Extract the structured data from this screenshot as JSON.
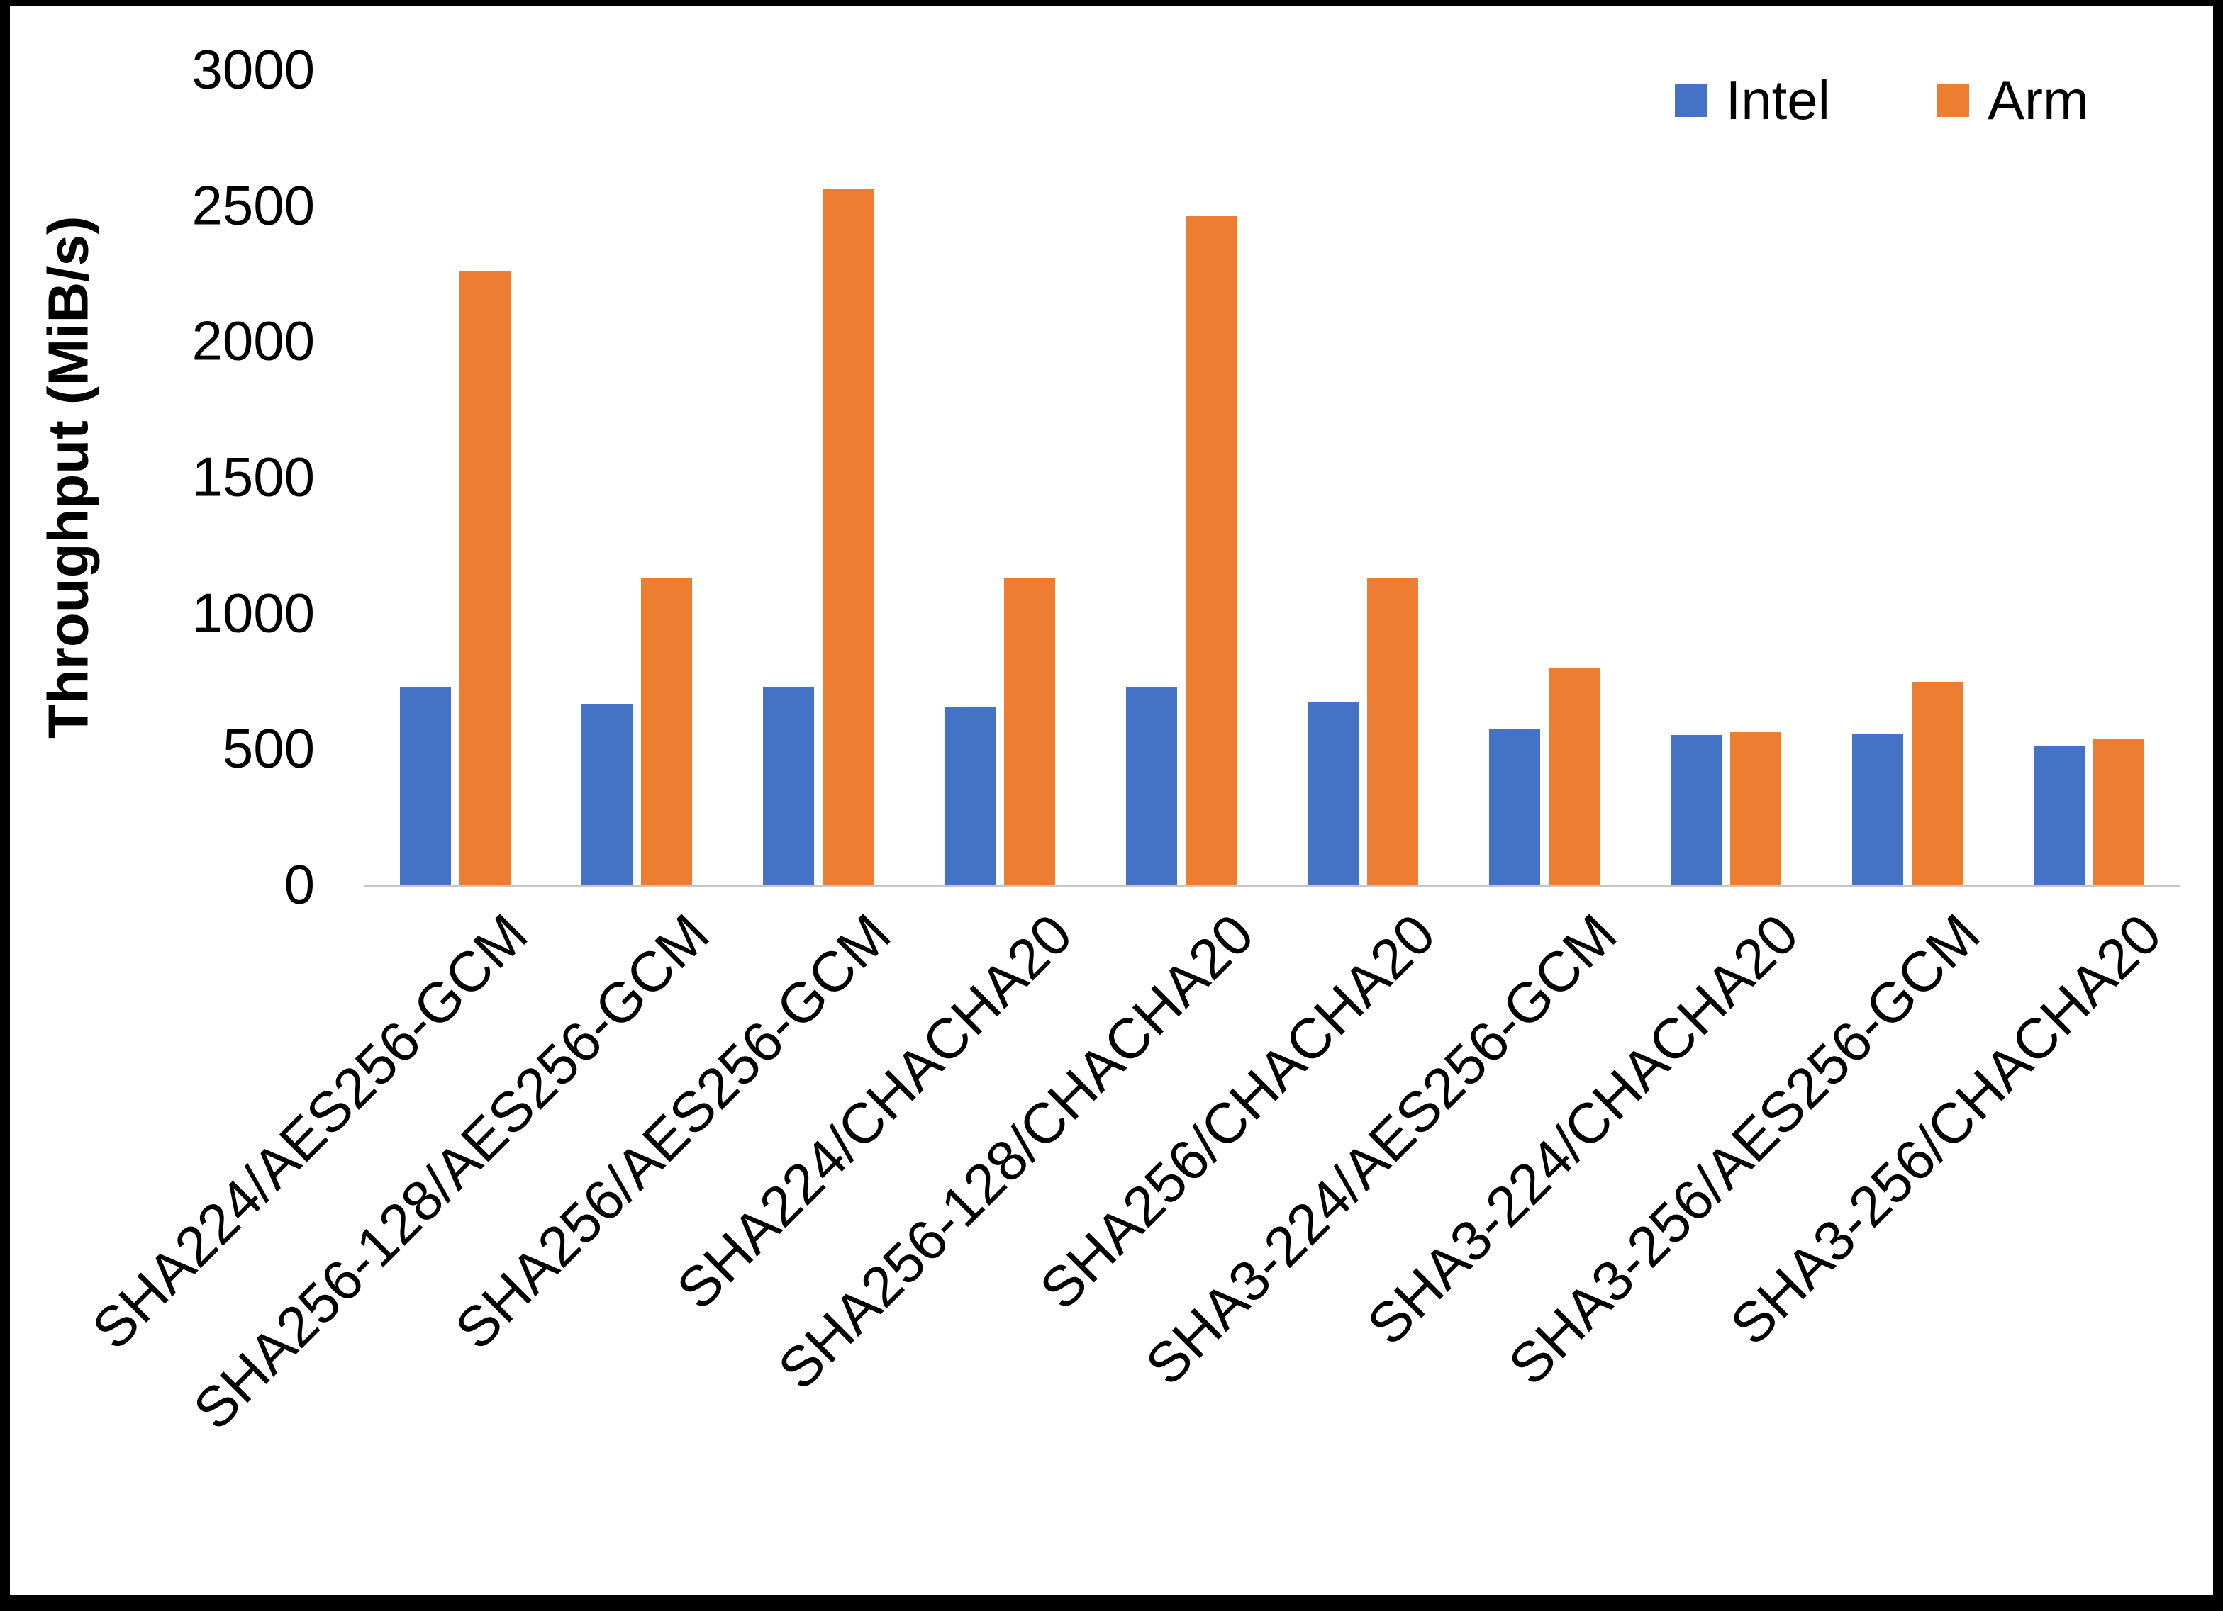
{
  "figure": {
    "background": "#ffffff",
    "border_color": "#000000",
    "axis_line_color": "#c6c6c6"
  },
  "legend": {
    "items": [
      {
        "label": "Intel",
        "color": "#4472C4"
      },
      {
        "label": "Arm",
        "color": "#ED7D31"
      }
    ]
  },
  "chart_data": {
    "type": "bar",
    "title": "",
    "xlabel": "",
    "ylabel": "Throughput (MiB/s)",
    "ylim": [
      0,
      3000
    ],
    "yticks": [
      0,
      500,
      1000,
      1500,
      2000,
      2500,
      3000
    ],
    "grid": false,
    "legend_position": "top-right",
    "categories": [
      "SHA224/AES256-GCM",
      "SHA256-128/AES256-GCM",
      "SHA256/AES256-GCM",
      "SHA224/CHACHA20",
      "SHA256-128/CHACHA20",
      "SHA256/CHACHA20",
      "SHA3-224/AES256-GCM",
      "SHA3-224/CHACHA20",
      "SHA3-256/AES256-GCM",
      "SHA3-256/CHACHA20"
    ],
    "series": [
      {
        "name": "Intel",
        "color": "#4472C4",
        "values": [
          725,
          665,
          725,
          655,
          725,
          670,
          575,
          550,
          555,
          510
        ]
      },
      {
        "name": "Arm",
        "color": "#ED7D31",
        "values": [
          2260,
          1130,
          2560,
          1130,
          2460,
          1130,
          795,
          560,
          745,
          535
        ]
      }
    ]
  }
}
